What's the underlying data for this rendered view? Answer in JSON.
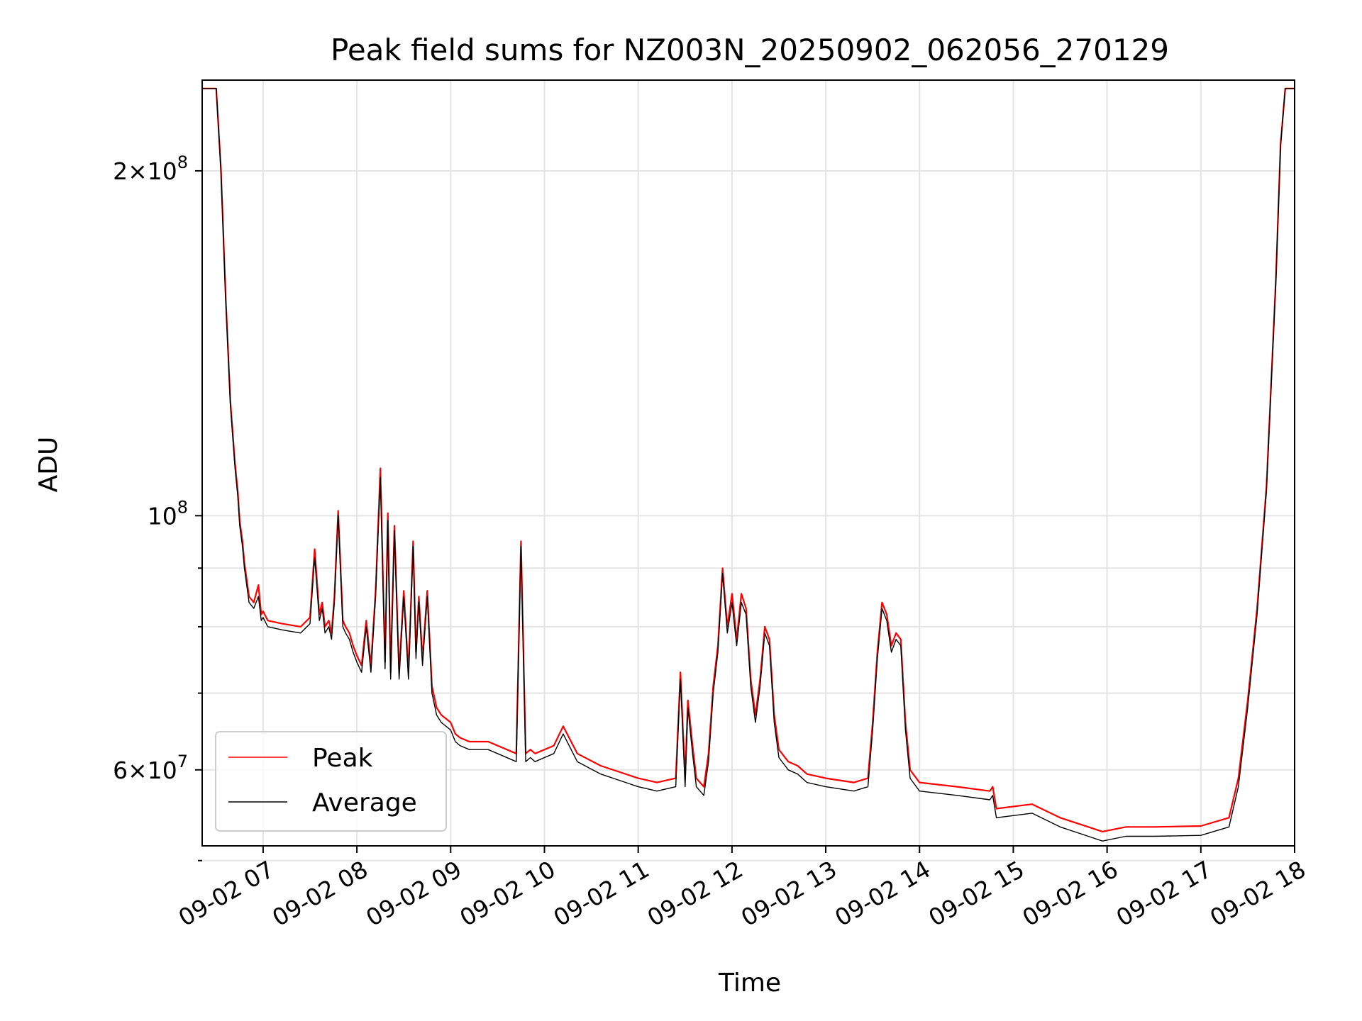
{
  "chart_data": {
    "type": "line",
    "title": "Peak field sums for NZ003N_20250902_062056_270129",
    "xlabel": "Time",
    "ylabel": "ADU",
    "x_unit": "hours (09-02)",
    "xlim": [
      6.35,
      18.0
    ],
    "ylim": [
      51500000,
      240000000
    ],
    "yscale": "log",
    "grid": true,
    "legend_position": "lower-left",
    "x_ticks": [
      {
        "value": 7,
        "label": "09-02 07"
      },
      {
        "value": 8,
        "label": "09-02 08"
      },
      {
        "value": 9,
        "label": "09-02 09"
      },
      {
        "value": 10,
        "label": "09-02 10"
      },
      {
        "value": 11,
        "label": "09-02 11"
      },
      {
        "value": 12,
        "label": "09-02 12"
      },
      {
        "value": 13,
        "label": "09-02 13"
      },
      {
        "value": 14,
        "label": "09-02 14"
      },
      {
        "value": 15,
        "label": "09-02 15"
      },
      {
        "value": 16,
        "label": "09-02 16"
      },
      {
        "value": 17,
        "label": "09-02 17"
      },
      {
        "value": 18,
        "label": "09-02 18"
      }
    ],
    "y_major_ticks": [
      {
        "value": 60000000,
        "mantissa": "6",
        "exponent": "7"
      },
      {
        "value": 100000000,
        "mantissa": "",
        "exponent": "8"
      },
      {
        "value": 200000000,
        "mantissa": "2",
        "exponent": "8"
      }
    ],
    "y_minor_ticks": [
      50000000,
      70000000,
      80000000,
      90000000
    ],
    "series": [
      {
        "name": "Average",
        "color": "#000000",
        "x": [
          6.35,
          6.5,
          6.55,
          6.6,
          6.65,
          6.7,
          6.73,
          6.75,
          6.78,
          6.8,
          6.85,
          6.9,
          6.95,
          6.98,
          7.0,
          7.05,
          7.2,
          7.4,
          7.5,
          7.55,
          7.6,
          7.63,
          7.66,
          7.7,
          7.73,
          7.76,
          7.8,
          7.85,
          7.88,
          7.92,
          7.96,
          8.0,
          8.05,
          8.1,
          8.15,
          8.2,
          8.25,
          8.3,
          8.33,
          8.36,
          8.4,
          8.45,
          8.5,
          8.55,
          8.6,
          8.63,
          8.66,
          8.7,
          8.75,
          8.8,
          8.85,
          8.9,
          9.0,
          9.05,
          9.1,
          9.2,
          9.4,
          9.7,
          9.75,
          9.8,
          9.85,
          9.9,
          10.1,
          10.2,
          10.35,
          10.6,
          11.0,
          11.2,
          11.4,
          11.45,
          11.5,
          11.53,
          11.58,
          11.62,
          11.7,
          11.75,
          11.8,
          11.85,
          11.9,
          11.95,
          12.0,
          12.05,
          12.1,
          12.15,
          12.2,
          12.25,
          12.3,
          12.35,
          12.4,
          12.45,
          12.5,
          12.6,
          12.7,
          12.8,
          13.0,
          13.3,
          13.45,
          13.5,
          13.55,
          13.6,
          13.65,
          13.7,
          13.75,
          13.8,
          13.85,
          13.9,
          14.0,
          14.4,
          14.75,
          14.78,
          14.82,
          15.2,
          15.5,
          15.8,
          15.95,
          16.2,
          16.5,
          17.0,
          17.3,
          17.4,
          17.5,
          17.6,
          17.7,
          17.8,
          17.85,
          17.9,
          18.0
        ],
        "values": [
          236000000,
          236000000,
          200000000,
          155000000,
          125000000,
          110000000,
          104000000,
          98000000,
          94000000,
          90000000,
          84000000,
          83000000,
          85000000,
          81000000,
          81500000,
          80000000,
          79500000,
          79000000,
          80500000,
          92000000,
          81000000,
          83000000,
          79000000,
          80000000,
          78000000,
          84000000,
          100000000,
          80000000,
          79000000,
          78000000,
          76000000,
          74500000,
          73000000,
          80000000,
          73000000,
          85000000,
          108000000,
          73500000,
          99000000,
          72000000,
          97000000,
          72000000,
          85000000,
          72000000,
          94000000,
          75000000,
          84000000,
          74000000,
          85000000,
          70000000,
          67000000,
          66000000,
          65000000,
          63500000,
          63000000,
          62500000,
          62500000,
          61000000,
          94000000,
          61000000,
          61500000,
          61000000,
          62000000,
          64500000,
          61000000,
          59500000,
          58000000,
          57500000,
          58000000,
          72000000,
          58000000,
          68000000,
          62000000,
          58000000,
          57000000,
          61000000,
          70000000,
          76000000,
          89000000,
          79000000,
          84000000,
          77000000,
          84000000,
          82000000,
          71000000,
          66000000,
          71000000,
          79000000,
          77000000,
          66000000,
          61500000,
          60000000,
          59500000,
          58500000,
          58000000,
          57500000,
          58000000,
          65000000,
          75000000,
          83000000,
          81000000,
          76000000,
          78000000,
          77000000,
          65000000,
          59000000,
          57500000,
          57000000,
          56500000,
          57000000,
          54500000,
          55000000,
          53500000,
          52500000,
          52000000,
          52500000,
          52500000,
          52600000,
          53500000,
          58000000,
          68000000,
          82000000,
          105000000,
          160000000,
          210000000,
          236000000,
          236000000
        ]
      },
      {
        "name": "Peak",
        "color": "#ff0000",
        "x": [
          6.35,
          6.5,
          6.55,
          6.6,
          6.65,
          6.7,
          6.73,
          6.75,
          6.78,
          6.8,
          6.85,
          6.9,
          6.95,
          6.98,
          7.0,
          7.05,
          7.2,
          7.4,
          7.5,
          7.55,
          7.6,
          7.63,
          7.66,
          7.7,
          7.73,
          7.76,
          7.8,
          7.85,
          7.88,
          7.92,
          7.96,
          8.0,
          8.05,
          8.1,
          8.15,
          8.2,
          8.25,
          8.3,
          8.33,
          8.36,
          8.4,
          8.45,
          8.5,
          8.55,
          8.6,
          8.63,
          8.66,
          8.7,
          8.75,
          8.8,
          8.85,
          8.9,
          9.0,
          9.05,
          9.1,
          9.2,
          9.4,
          9.7,
          9.75,
          9.8,
          9.85,
          9.9,
          10.1,
          10.2,
          10.35,
          10.6,
          11.0,
          11.2,
          11.4,
          11.45,
          11.5,
          11.53,
          11.58,
          11.62,
          11.7,
          11.75,
          11.8,
          11.85,
          11.9,
          11.95,
          12.0,
          12.05,
          12.1,
          12.15,
          12.2,
          12.25,
          12.3,
          12.35,
          12.4,
          12.45,
          12.5,
          12.6,
          12.7,
          12.8,
          13.0,
          13.3,
          13.45,
          13.5,
          13.55,
          13.6,
          13.65,
          13.7,
          13.75,
          13.8,
          13.85,
          13.9,
          14.0,
          14.4,
          14.75,
          14.78,
          14.82,
          15.2,
          15.5,
          15.8,
          15.95,
          16.2,
          16.5,
          17.0,
          17.3,
          17.4,
          17.5,
          17.6,
          17.7,
          17.8,
          17.85,
          17.9,
          18.0
        ],
        "values": [
          236000000,
          236000000,
          201000000,
          156000000,
          126000000,
          111000000,
          105000000,
          99000000,
          95000000,
          91000000,
          85000000,
          84000000,
          87000000,
          82000000,
          82500000,
          81000000,
          80500000,
          80000000,
          81500000,
          93500000,
          82000000,
          84000000,
          80000000,
          81000000,
          79000000,
          85000000,
          101000000,
          81000000,
          80000000,
          79000000,
          77000000,
          75500000,
          74000000,
          81000000,
          74000000,
          86000000,
          110000000,
          74500000,
          100500000,
          73000000,
          98000000,
          73000000,
          86000000,
          73000000,
          95000000,
          76000000,
          85000000,
          75000000,
          86000000,
          71000000,
          68000000,
          67000000,
          66000000,
          64500000,
          64000000,
          63500000,
          63500000,
          62000000,
          95000000,
          62000000,
          62500000,
          62000000,
          63000000,
          65500000,
          62000000,
          60500000,
          59000000,
          58500000,
          59000000,
          73000000,
          59000000,
          69000000,
          63000000,
          59000000,
          58000000,
          62000000,
          71000000,
          77000000,
          90000000,
          80000000,
          85500000,
          78000000,
          85500000,
          83000000,
          72000000,
          67000000,
          72000000,
          80000000,
          78000000,
          67000000,
          62500000,
          61000000,
          60500000,
          59500000,
          59000000,
          58500000,
          59000000,
          66000000,
          76000000,
          84000000,
          82000000,
          77000000,
          79000000,
          78000000,
          66000000,
          60000000,
          58500000,
          58000000,
          57500000,
          58000000,
          55500000,
          56000000,
          54500000,
          53500000,
          53000000,
          53500000,
          53500000,
          53600000,
          54500000,
          59000000,
          69000000,
          83000000,
          106000000,
          161000000,
          211000000,
          236000000,
          236000000
        ]
      }
    ]
  }
}
